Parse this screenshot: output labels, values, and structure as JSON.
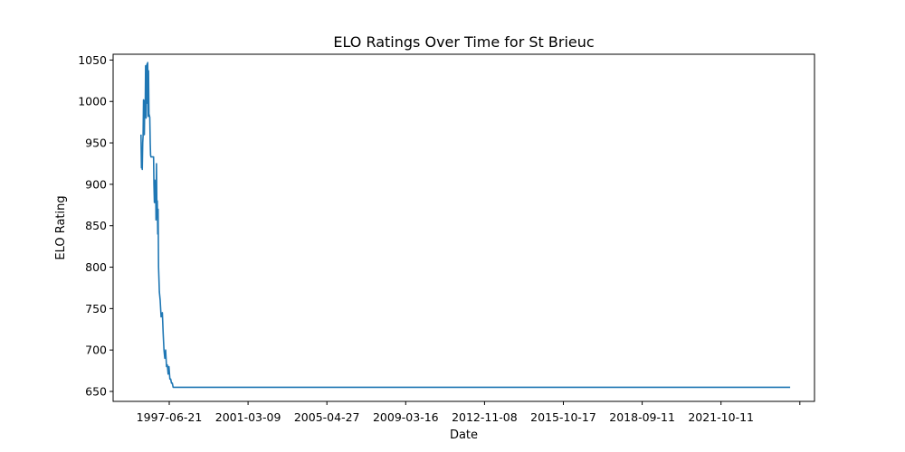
{
  "chart_data": {
    "type": "line",
    "title": "ELO Ratings Over Time for St Brieuc",
    "xlabel": "Date",
    "ylabel": "ELO Rating",
    "ylim": [
      638,
      1057
    ],
    "xlim": [
      "1995-05-01",
      "2027-07-15"
    ],
    "grid": false,
    "legend": "none",
    "color": "#1f77b4",
    "x_ticks": [
      "1997-06-21",
      "2001-03-09",
      "2005-04-27",
      "2009-03-16",
      "2012-11-08",
      "2015-10-17",
      "2018-09-11",
      "2021-10-11",
      ""
    ],
    "y_ticks": [
      650,
      700,
      750,
      800,
      850,
      900,
      950,
      1000,
      1050
    ],
    "series": [
      {
        "x": [
          "1996-08-10",
          "1996-08-18",
          "1996-08-25",
          "1996-09-01",
          "1996-09-08",
          "1996-09-15",
          "1996-09-22",
          "1996-09-29",
          "1996-10-06",
          "1996-10-13",
          "1996-10-20",
          "1996-10-27",
          "1996-11-03",
          "1996-11-10",
          "1996-11-17",
          "1996-11-24",
          "1996-12-01",
          "1996-12-08",
          "1996-12-15",
          "1996-12-22",
          "1997-01-05",
          "1997-01-12",
          "1997-01-19",
          "1997-01-26",
          "1997-02-02",
          "1997-02-09",
          "1997-02-16",
          "1997-02-23",
          "1997-03-02",
          "1997-03-09",
          "1997-03-16",
          "1997-03-23",
          "1997-03-30",
          "1997-04-06",
          "1997-04-13",
          "1997-04-20",
          "1997-04-27",
          "1997-05-04",
          "1997-05-11",
          "1997-05-18",
          "1997-05-25",
          "1997-06-01",
          "1997-06-15",
          "1997-06-29",
          "1997-07-13",
          "1997-08-03",
          "1997-08-17",
          "1997-08-31",
          "1997-09-14",
          "1997-09-28",
          "1997-10-12",
          "1997-10-26",
          "1997-11-09",
          "1997-11-23",
          "1997-12-07",
          "1997-12-21",
          "1998-01-04",
          "1998-01-18",
          "1998-02-01",
          "1998-02-15",
          "1998-03-01",
          "1998-03-15",
          "1998-03-29",
          "1998-04-05",
          "1998-04-12",
          "1998-04-19",
          "1998-04-26",
          "1998-05-03",
          "1998-05-10",
          "1998-05-24",
          "1998-06-07",
          "1998-06-21",
          "1998-07-12",
          "1999-01-01",
          "2005-01-01",
          "2015-01-01",
          "2026-06-01"
        ],
        "y": [
          960,
          920,
          935,
          918,
          950,
          958,
          1002,
          975,
          960,
          1001,
          985,
          1043,
          980,
          1036,
          1045,
          998,
          1047,
          982,
          1037,
          985,
          981,
          950,
          935,
          933,
          933,
          933,
          933,
          933,
          933,
          933,
          900,
          878,
          905,
          878,
          900,
          857,
          925,
          860,
          880,
          840,
          870,
          800,
          770,
          760,
          740,
          745,
          720,
          700,
          690,
          700,
          680,
          682,
          671,
          680,
          665,
          665,
          660,
          660,
          655,
          655,
          655,
          655,
          655,
          655,
          655,
          655,
          655,
          655,
          655,
          655,
          655,
          655,
          655,
          655,
          655,
          655,
          655
        ]
      }
    ]
  }
}
